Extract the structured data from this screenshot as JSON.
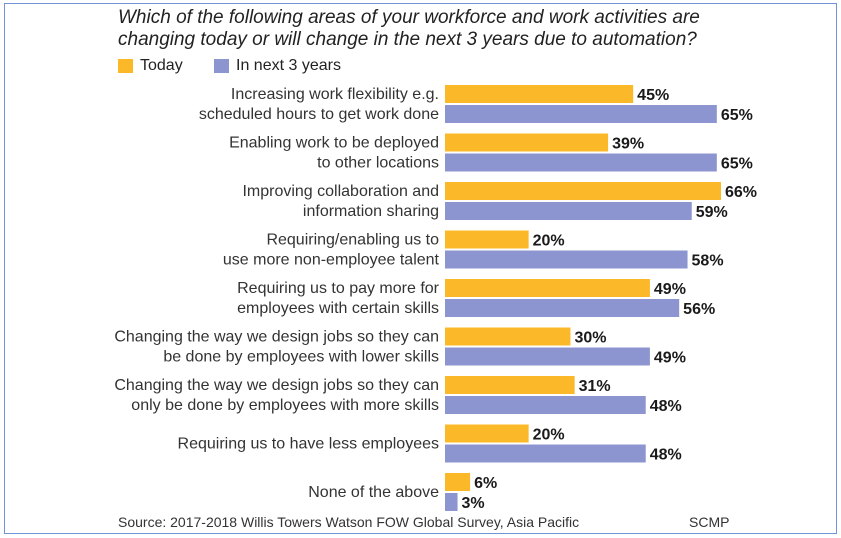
{
  "chart_data": {
    "type": "bar",
    "orientation": "horizontal",
    "title": "Which of the following areas of your workforce and work activities are changing today or will change in the next 3 years due to automation?",
    "title_lines": [
      "Which of the following areas of your workforce and work activities are",
      "changing today or will change in the next 3 years due to automation?"
    ],
    "categories": [
      [
        "Increasing work flexibility e.g.",
        "scheduled hours to get work done"
      ],
      [
        "Enabling work to be deployed",
        "to other locations"
      ],
      [
        "Improving collaboration and",
        "information sharing"
      ],
      [
        "Requiring/enabling us to",
        "use more non-employee talent"
      ],
      [
        "Requiring us to pay more for",
        "employees with certain skills"
      ],
      [
        "Changing the way we design jobs so they can",
        "be done by employees with lower skills"
      ],
      [
        "Changing the way we design jobs so they can",
        "only be done by employees with more skills"
      ],
      [
        "Requiring us to have less employees"
      ],
      [
        "None of the above"
      ]
    ],
    "series": [
      {
        "name": "Today",
        "color": "#fbb829",
        "values": [
          45,
          39,
          66,
          20,
          49,
          30,
          31,
          20,
          6
        ],
        "labels": [
          "45%",
          "39%",
          "66%",
          "20%",
          "49%",
          "30%",
          "31%",
          "20%",
          "6%"
        ]
      },
      {
        "name": "In next 3 years",
        "color": "#8c95cf",
        "values": [
          65,
          65,
          59,
          58,
          56,
          49,
          48,
          48,
          3
        ],
        "labels": [
          "65%",
          "65%",
          "59%",
          "58%",
          "56%",
          "49%",
          "48%",
          "48%",
          "3%"
        ]
      }
    ],
    "unit": "%",
    "xlim": [
      0,
      66
    ],
    "grid": false,
    "legend_position": "top-left"
  },
  "legend": {
    "today": "Today",
    "next": "In next 3 years"
  },
  "footer": {
    "source": "Source: 2017-2018 Willis Towers Watson FOW Global Survey, Asia Pacific",
    "brand": "SCMP"
  }
}
